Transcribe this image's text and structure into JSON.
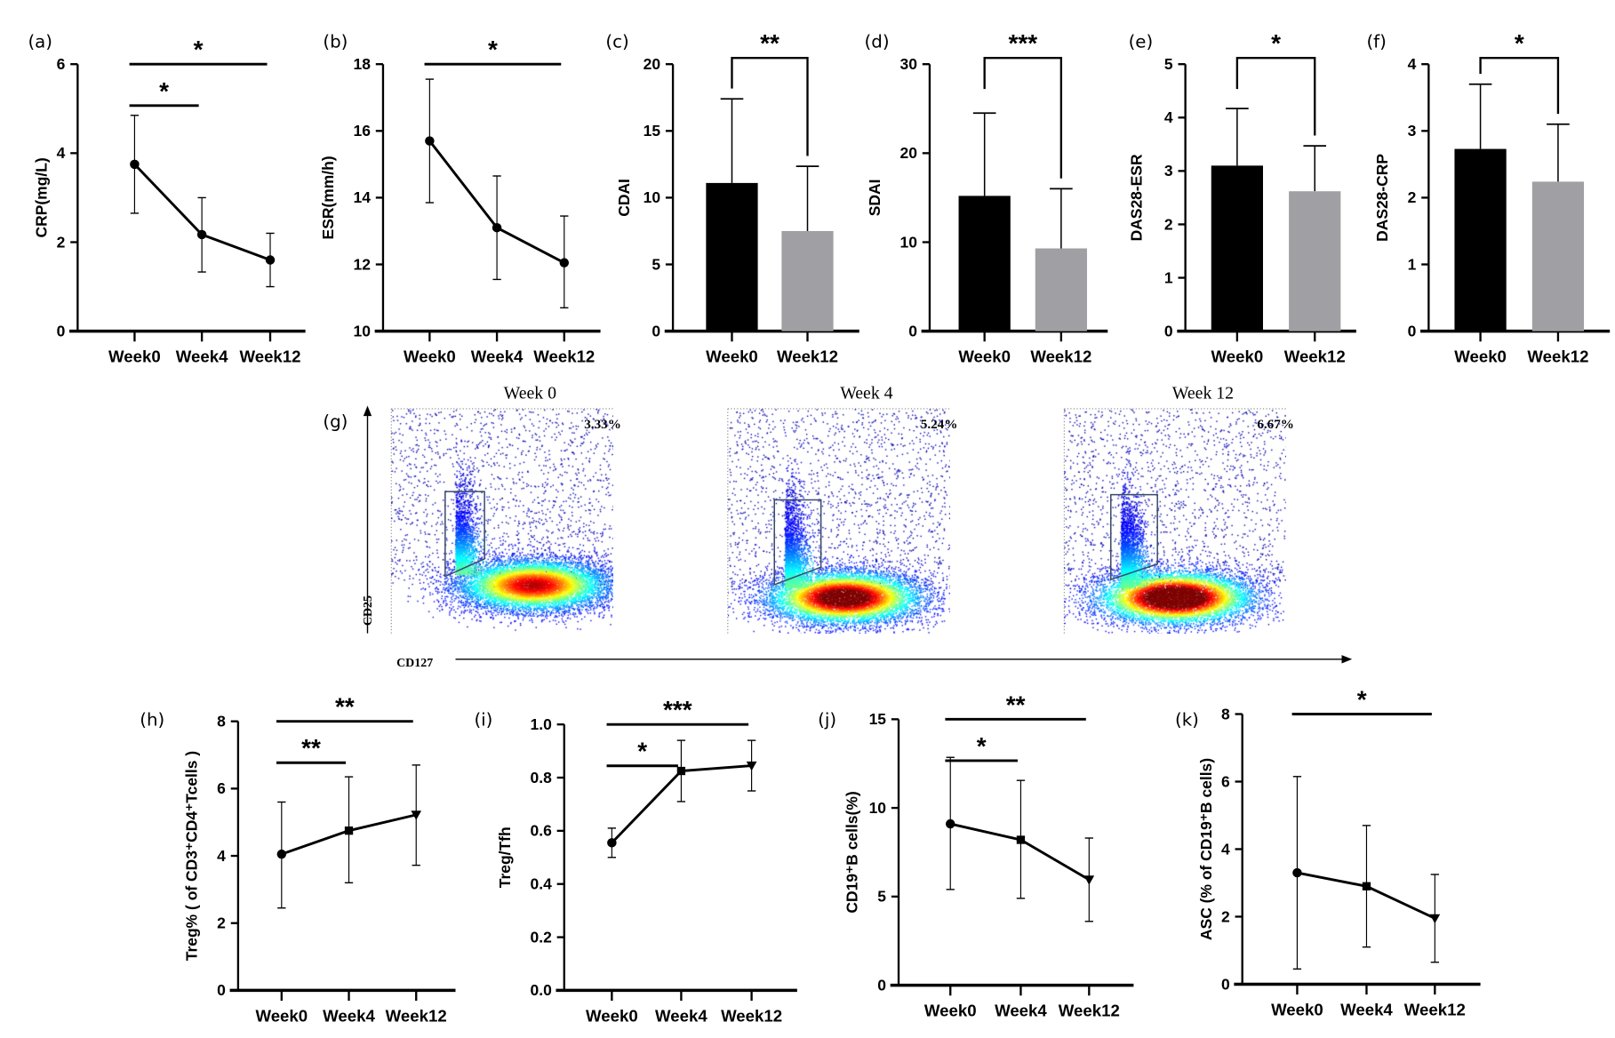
{
  "chart_data": [
    {
      "id": "a",
      "panel_label": "(a)",
      "type": "line",
      "categories": [
        "Week0",
        "Week4",
        "Week12"
      ],
      "values": [
        3.75,
        2.17,
        1.6
      ],
      "error_upper": [
        4.85,
        3.0,
        2.2
      ],
      "error_lower": [
        2.65,
        1.33,
        1.0
      ],
      "ylabel": "CRP(mg/L)",
      "ylim": [
        0,
        6
      ],
      "yticks": [
        0,
        2,
        4,
        6
      ],
      "markers": [
        "circle",
        "circle",
        "circle"
      ],
      "significance": [
        {
          "from": 0,
          "to": 1,
          "label": "*"
        },
        {
          "from": 0,
          "to": 2,
          "label": "*"
        }
      ]
    },
    {
      "id": "b",
      "panel_label": "(b)",
      "type": "line",
      "categories": [
        "Week0",
        "Week4",
        "Week12"
      ],
      "values": [
        15.7,
        13.1,
        12.05
      ],
      "error_upper": [
        17.55,
        14.65,
        13.45
      ],
      "error_lower": [
        13.85,
        11.55,
        10.7
      ],
      "ylabel": "ESR(mm/h)",
      "ylim": [
        10,
        18
      ],
      "yticks": [
        10,
        12,
        14,
        16,
        18
      ],
      "markers": [
        "circle",
        "circle",
        "circle"
      ],
      "significance": [
        {
          "from": 0,
          "to": 2,
          "label": "*"
        }
      ]
    },
    {
      "id": "c",
      "panel_label": "(c)",
      "type": "bar",
      "categories": [
        "Week0",
        "Week12"
      ],
      "values": [
        11.1,
        7.5
      ],
      "error_upper": [
        17.4,
        12.35
      ],
      "ylabel": "CDAI",
      "ylim": [
        0,
        20
      ],
      "yticks": [
        0,
        5,
        10,
        15,
        20
      ],
      "bar_colors": [
        "#000000",
        "#a0a0a4"
      ],
      "significance": [
        {
          "from": 0,
          "to": 1,
          "label": "**"
        }
      ]
    },
    {
      "id": "d",
      "panel_label": "(d)",
      "type": "bar",
      "categories": [
        "Week0",
        "Week12"
      ],
      "values": [
        15.2,
        9.3
      ],
      "error_upper": [
        24.5,
        16.0
      ],
      "ylabel": "SDAI",
      "ylim": [
        0,
        30
      ],
      "yticks": [
        0,
        10,
        20,
        30
      ],
      "bar_colors": [
        "#000000",
        "#a0a0a4"
      ],
      "significance": [
        {
          "from": 0,
          "to": 1,
          "label": "***"
        }
      ]
    },
    {
      "id": "e",
      "panel_label": "(e)",
      "type": "bar",
      "categories": [
        "Week0",
        "Week12"
      ],
      "values": [
        3.1,
        2.62
      ],
      "error_upper": [
        4.17,
        3.47
      ],
      "ylabel": "DAS28-ESR",
      "ylim": [
        0,
        5
      ],
      "yticks": [
        0,
        1,
        2,
        3,
        4,
        5
      ],
      "bar_colors": [
        "#000000",
        "#a0a0a4"
      ],
      "significance": [
        {
          "from": 0,
          "to": 1,
          "label": "*"
        }
      ]
    },
    {
      "id": "f",
      "panel_label": "(f)",
      "type": "bar",
      "categories": [
        "Week0",
        "Week12"
      ],
      "values": [
        2.73,
        2.24
      ],
      "error_upper": [
        3.7,
        3.1
      ],
      "ylabel": "DAS28-CRP",
      "ylim": [
        0,
        4
      ],
      "yticks": [
        0,
        1,
        2,
        3,
        4
      ],
      "bar_colors": [
        "#000000",
        "#a0a0a4"
      ],
      "significance": [
        {
          "from": 0,
          "to": 1,
          "label": "*"
        }
      ]
    },
    {
      "id": "h",
      "panel_label": "(h)",
      "type": "line",
      "categories": [
        "Week0",
        "Week4",
        "Week12"
      ],
      "values": [
        4.05,
        4.75,
        5.22
      ],
      "error_upper": [
        5.6,
        6.35,
        6.7
      ],
      "error_lower": [
        2.45,
        3.2,
        3.72
      ],
      "ylabel": "Treg% ( of CD3⁺CD4⁺Tcells )",
      "ylim": [
        0,
        8
      ],
      "yticks": [
        0,
        2,
        4,
        6,
        8
      ],
      "markers": [
        "circle",
        "square",
        "triangle-down"
      ],
      "significance": [
        {
          "from": 0,
          "to": 1,
          "label": "**"
        },
        {
          "from": 0,
          "to": 2,
          "label": "**"
        }
      ]
    },
    {
      "id": "i",
      "panel_label": "(i)",
      "type": "line",
      "categories": [
        "Week0",
        "Week4",
        "Week12"
      ],
      "values": [
        0.555,
        0.825,
        0.845
      ],
      "error_upper": [
        0.61,
        0.94,
        0.94
      ],
      "error_lower": [
        0.5,
        0.71,
        0.75
      ],
      "ylabel": "Treg/Tfh",
      "ylim": [
        0,
        1.0
      ],
      "yticks": [
        "0.0",
        "0.2",
        "0.4",
        "0.6",
        "0.8",
        "1.0"
      ],
      "markers": [
        "circle",
        "square",
        "triangle-down"
      ],
      "significance": [
        {
          "from": 0,
          "to": 1,
          "label": "*"
        },
        {
          "from": 0,
          "to": 2,
          "label": "***"
        }
      ]
    },
    {
      "id": "j",
      "panel_label": "(j)",
      "type": "line",
      "categories": [
        "Week0",
        "Week4",
        "Week12"
      ],
      "values": [
        9.1,
        8.2,
        5.95
      ],
      "error_upper": [
        12.85,
        11.55,
        8.3
      ],
      "error_lower": [
        5.4,
        4.9,
        3.6
      ],
      "ylabel": "CD19⁺B cells(%)",
      "ylim": [
        0,
        15
      ],
      "yticks": [
        0,
        5,
        10,
        15
      ],
      "markers": [
        "circle",
        "square",
        "triangle-down"
      ],
      "significance": [
        {
          "from": 0,
          "to": 1,
          "label": "*"
        },
        {
          "from": 0,
          "to": 2,
          "label": "**"
        }
      ]
    },
    {
      "id": "k",
      "panel_label": "(k)",
      "type": "line",
      "categories": [
        "Week0",
        "Week4",
        "Week12"
      ],
      "values": [
        3.3,
        2.9,
        1.95
      ],
      "error_upper": [
        6.15,
        4.7,
        3.25
      ],
      "error_lower": [
        0.45,
        1.1,
        0.65
      ],
      "ylabel": "ASC (% of CD19⁺B cells)",
      "ylim": [
        0,
        8
      ],
      "yticks": [
        0,
        2,
        4,
        6,
        8
      ],
      "markers": [
        "circle",
        "square",
        "triangle-down"
      ],
      "significance": [
        {
          "from": 0,
          "to": 2,
          "label": "*"
        }
      ]
    }
  ],
  "flow": {
    "panel_label": "(g)",
    "type": "scatter",
    "xlabel": "CD127",
    "ylabel": "CD25",
    "plots": [
      {
        "title": "Week 0",
        "gate_percent": "3.33%"
      },
      {
        "title": "Week 4",
        "gate_percent": "5.24%"
      },
      {
        "title": "Week 12",
        "gate_percent": "6.67%"
      }
    ],
    "colors": {
      "line": "#000000",
      "bar_week0": "#000000",
      "bar_week12": "#a0a0a4",
      "gate": "#3a4a6a"
    }
  }
}
